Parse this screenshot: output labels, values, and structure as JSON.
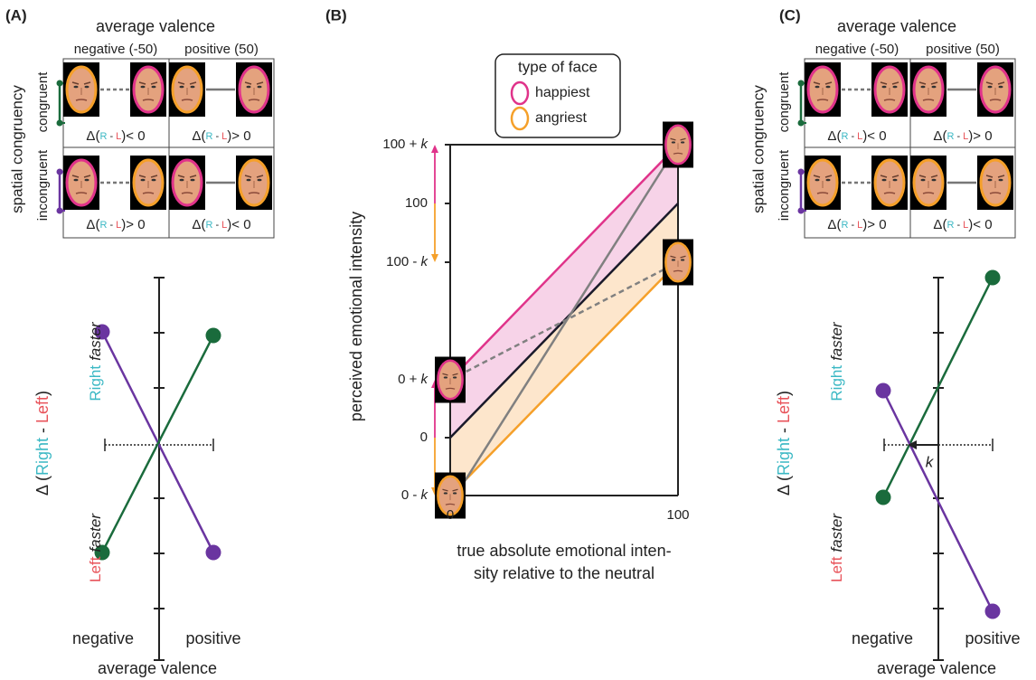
{
  "panel_a": {
    "label": "(A)",
    "table": {
      "title": "average valence",
      "columns": [
        "negative (-50)",
        "positive (50)"
      ],
      "row_title": "spatial congruency",
      "rows": [
        "congruent",
        "incongruent"
      ],
      "cells": [
        [
          "< 0",
          "> 0"
        ],
        [
          "> 0",
          "< 0"
        ]
      ]
    },
    "delta": {
      "prefix": "Δ(",
      "r": "R",
      "sep": " - ",
      "l": "L",
      "suffix": ")"
    },
    "plot": {
      "y_label": {
        "prefix": "Δ (",
        "right": "Right",
        "sep": " - ",
        "left": "Left",
        "suffix": ")"
      },
      "right_faster": {
        "side": "Right",
        "word": "faster"
      },
      "left_faster": {
        "side": "Left",
        "word": "faster"
      },
      "x_categories": [
        "negative",
        "positive"
      ],
      "x_label": "average valence"
    }
  },
  "panel_b": {
    "label": "(B)",
    "legend": {
      "title": "type of face",
      "items": [
        "happiest",
        "angriest"
      ]
    },
    "y_label": "perceived emotional intensity",
    "y_ticks": [
      {
        "base": "100 + ",
        "k": "k"
      },
      {
        "base": "100"
      },
      {
        "base": "100 - ",
        "k": "k"
      },
      {
        "base": "0 + ",
        "k": "k"
      },
      {
        "base": "0"
      },
      {
        "base": "0 - ",
        "k": "k"
      }
    ],
    "x_ticks": [
      "0",
      "100"
    ],
    "x_label": [
      "true absolute emotional inten-",
      "sity relative to the neutral"
    ]
  },
  "panel_c": {
    "label": "(C)",
    "table": {
      "title": "average valence",
      "columns": [
        "negative (-50)",
        "positive (50)"
      ],
      "row_title": "spatial congruency",
      "rows": [
        "congruent",
        "incongruent"
      ],
      "cells": [
        [
          "< 0",
          "> 0"
        ],
        [
          "> 0",
          "< 0"
        ]
      ]
    },
    "delta": {
      "prefix": "Δ(",
      "r": "R",
      "sep": " - ",
      "l": "L",
      "suffix": ")"
    },
    "plot": {
      "y_label": {
        "prefix": "Δ (",
        "right": "Right",
        "sep": " - ",
        "left": "Left",
        "suffix": ")"
      },
      "right_faster": {
        "side": "Right",
        "word": "faster"
      },
      "left_faster": {
        "side": "Left",
        "word": "faster"
      },
      "x_categories": [
        "negative",
        "positive"
      ],
      "x_label": "average valence",
      "k": "k"
    }
  }
}
